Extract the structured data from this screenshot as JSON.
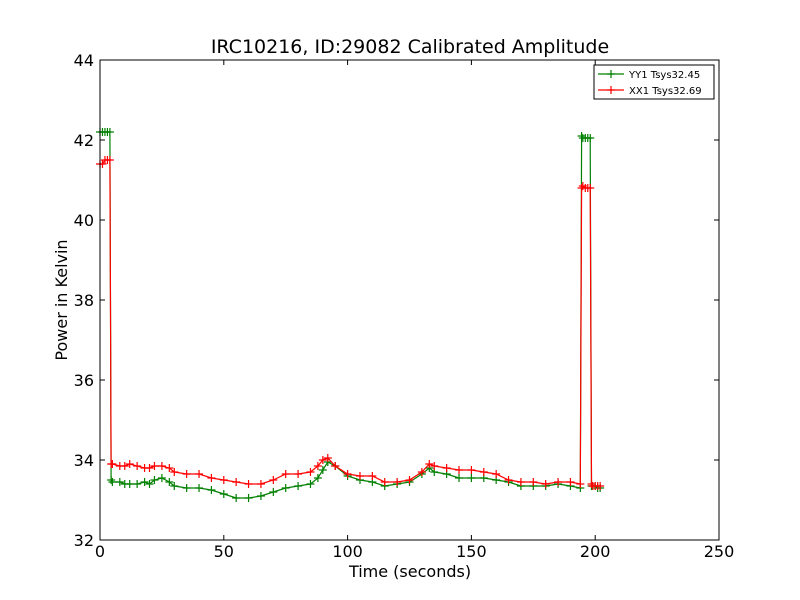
{
  "chart_data": {
    "type": "line",
    "title": "IRC10216, ID:29082 Calibrated Amplitude",
    "xlabel": "Time (seconds)",
    "ylabel": "Power in Kelvin",
    "xlim": [
      0,
      250
    ],
    "ylim": [
      32,
      44
    ],
    "xticks": [
      0,
      50,
      100,
      150,
      200,
      250
    ],
    "yticks": [
      32,
      34,
      36,
      38,
      40,
      42,
      44
    ],
    "grid": false,
    "legend_position": "top-right",
    "series": [
      {
        "name": "YY1 Tsys32.45",
        "color": "#008000",
        "marker": "+",
        "x": [
          0,
          1,
          2,
          3,
          4,
          4.5,
          5,
          8,
          10,
          12,
          15,
          18,
          20,
          22,
          25,
          28,
          30,
          35,
          40,
          45,
          50,
          55,
          60,
          65,
          70,
          75,
          80,
          85,
          88,
          90,
          92,
          95,
          100,
          105,
          110,
          115,
          120,
          125,
          130,
          133,
          135,
          140,
          145,
          150,
          155,
          160,
          165,
          170,
          175,
          180,
          185,
          190,
          194,
          194.5,
          195,
          196,
          197,
          198,
          198.5,
          199,
          200,
          201,
          202
        ],
        "y": [
          42.2,
          42.2,
          42.2,
          42.2,
          42.2,
          33.5,
          33.45,
          33.45,
          33.4,
          33.4,
          33.4,
          33.45,
          33.4,
          33.5,
          33.55,
          33.45,
          33.35,
          33.3,
          33.3,
          33.25,
          33.15,
          33.05,
          33.05,
          33.1,
          33.2,
          33.3,
          33.35,
          33.4,
          33.55,
          33.75,
          33.95,
          33.85,
          33.6,
          33.5,
          33.45,
          33.35,
          33.4,
          33.45,
          33.65,
          33.8,
          33.7,
          33.65,
          33.55,
          33.55,
          33.55,
          33.5,
          33.45,
          33.35,
          33.35,
          33.35,
          33.4,
          33.35,
          33.3,
          42.1,
          42.05,
          42.05,
          42.05,
          42.05,
          33.35,
          33.35,
          33.35,
          33.3,
          33.3
        ]
      },
      {
        "name": "XX1 Tsys32.69",
        "color": "#ff0000",
        "marker": "+",
        "x": [
          0,
          1,
          2,
          3,
          4,
          4.5,
          5,
          8,
          10,
          12,
          15,
          18,
          20,
          22,
          25,
          28,
          30,
          35,
          40,
          45,
          50,
          55,
          60,
          65,
          70,
          75,
          80,
          85,
          88,
          90,
          92,
          95,
          100,
          105,
          110,
          115,
          120,
          125,
          130,
          133,
          135,
          140,
          145,
          150,
          155,
          160,
          165,
          170,
          175,
          180,
          185,
          190,
          194,
          194.5,
          195,
          196,
          197,
          198,
          198.5,
          199,
          200,
          201,
          202
        ],
        "y": [
          41.4,
          41.4,
          41.5,
          41.5,
          41.5,
          33.9,
          33.9,
          33.85,
          33.85,
          33.9,
          33.85,
          33.8,
          33.8,
          33.85,
          33.85,
          33.8,
          33.7,
          33.65,
          33.65,
          33.55,
          33.5,
          33.45,
          33.4,
          33.4,
          33.5,
          33.65,
          33.65,
          33.7,
          33.85,
          34.0,
          34.05,
          33.85,
          33.65,
          33.6,
          33.6,
          33.45,
          33.45,
          33.5,
          33.7,
          33.9,
          33.85,
          33.8,
          33.75,
          33.75,
          33.7,
          33.65,
          33.5,
          33.45,
          33.45,
          33.4,
          33.45,
          33.45,
          33.4,
          40.8,
          40.85,
          40.8,
          40.8,
          40.8,
          33.4,
          33.35,
          33.35,
          33.35,
          33.35
        ]
      }
    ]
  }
}
